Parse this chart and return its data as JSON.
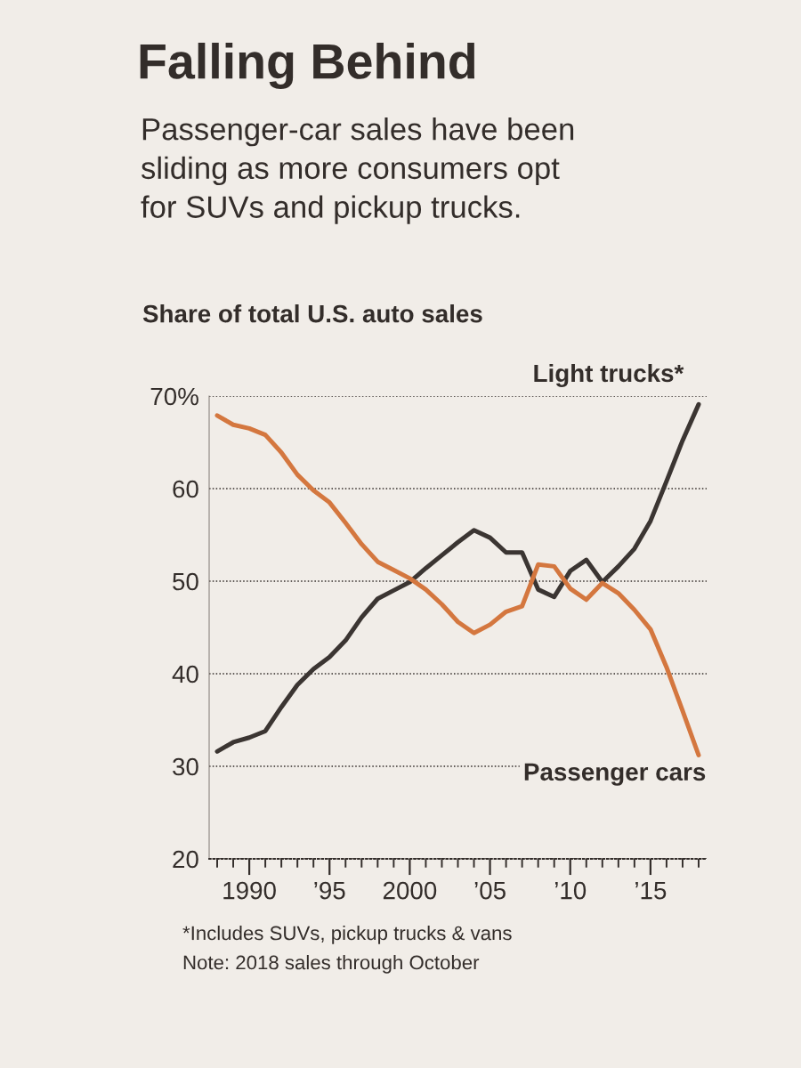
{
  "chart_data": {
    "type": "line",
    "title": "Falling Behind",
    "subtitle": "Passenger-car sales have been sliding as more consumers opt for SUVs and pickup trucks.",
    "ylabel": "Share of total U.S. auto sales",
    "x": [
      1988,
      1989,
      1990,
      1991,
      1992,
      1993,
      1994,
      1995,
      1996,
      1997,
      1998,
      1999,
      2000,
      2001,
      2002,
      2003,
      2004,
      2005,
      2006,
      2007,
      2008,
      2009,
      2010,
      2011,
      2012,
      2013,
      2014,
      2015,
      2016,
      2017,
      2018
    ],
    "series": [
      {
        "name": "Light trucks*",
        "color": "#3b3532",
        "values": [
          31.6,
          32.6,
          33.1,
          33.8,
          36.4,
          38.8,
          40.5,
          41.8,
          43.6,
          46.1,
          48.1,
          49.0,
          49.9,
          51.4,
          52.8,
          54.2,
          55.5,
          54.7,
          53.1,
          53.1,
          49.1,
          48.3,
          51.1,
          52.3,
          49.9,
          51.6,
          53.5,
          56.5,
          60.8,
          65.2,
          69.1
        ]
      },
      {
        "name": "Passenger cars",
        "color": "#d4773f",
        "values": [
          67.9,
          66.9,
          66.5,
          65.8,
          63.9,
          61.5,
          59.8,
          58.5,
          56.3,
          54.0,
          52.1,
          51.2,
          50.3,
          49.1,
          47.5,
          45.6,
          44.4,
          45.3,
          46.7,
          47.3,
          51.8,
          51.6,
          49.2,
          48.0,
          49.8,
          48.7,
          46.9,
          44.8,
          40.7,
          36.0,
          31.2
        ]
      }
    ],
    "xlim": [
      1987.5,
      2018.5
    ],
    "xticks": [
      {
        "value": 1988,
        "label": null
      },
      {
        "value": 1989,
        "label": null
      },
      1990,
      {
        "value": 1991,
        "label": null
      },
      {
        "value": 1992,
        "label": null
      },
      {
        "value": 1993,
        "label": null
      },
      {
        "value": 1994,
        "label": null
      },
      {
        "value": 1995,
        "label": "’95"
      },
      {
        "value": 1996,
        "label": null
      },
      {
        "value": 1997,
        "label": null
      },
      {
        "value": 1998,
        "label": null
      },
      {
        "value": 1999,
        "label": null
      },
      2000,
      {
        "value": 2001,
        "label": null
      },
      {
        "value": 2002,
        "label": null
      },
      {
        "value": 2003,
        "label": null
      },
      {
        "value": 2004,
        "label": null
      },
      {
        "value": 2005,
        "label": "’05"
      },
      {
        "value": 2006,
        "label": null
      },
      {
        "value": 2007,
        "label": null
      },
      {
        "value": 2008,
        "label": null
      },
      {
        "value": 2009,
        "label": null
      },
      {
        "value": 2010,
        "label": "’10"
      },
      {
        "value": 2011,
        "label": null
      },
      {
        "value": 2012,
        "label": null
      },
      {
        "value": 2013,
        "label": null
      },
      {
        "value": 2014,
        "label": null
      },
      {
        "value": 2015,
        "label": "’15"
      },
      {
        "value": 2016,
        "label": null
      },
      {
        "value": 2017,
        "label": null
      },
      {
        "value": 2018,
        "label": null
      }
    ],
    "ylim": [
      20,
      70
    ],
    "yticks": [
      20,
      30,
      40,
      50,
      60,
      {
        "value": 70,
        "label": "70%"
      }
    ],
    "grid": "y",
    "legend": false,
    "annotations": [
      "*Includes SUVs, pickup trucks & vans",
      "Note: 2018 sales through October"
    ]
  }
}
